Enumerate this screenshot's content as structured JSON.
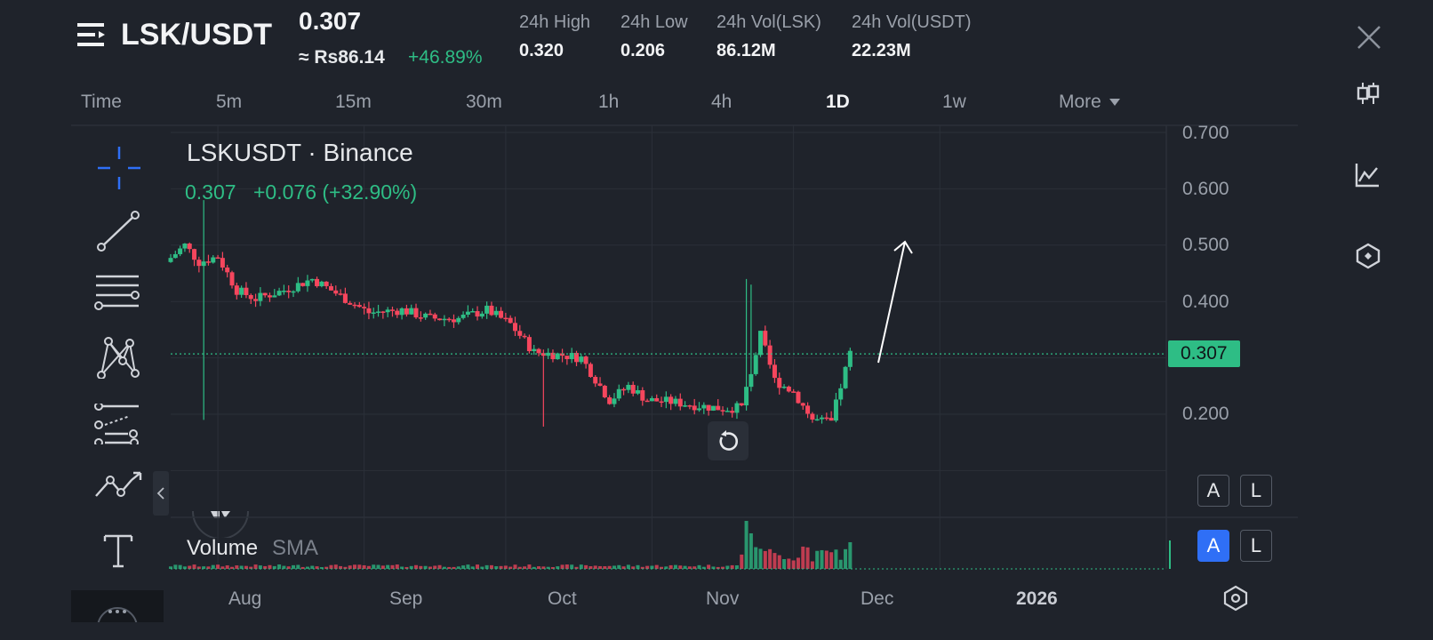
{
  "header": {
    "pair": "LSK/USDT",
    "last_price": "0.307",
    "approx_local": "≈ Rs86.14",
    "change_pct": "+46.89%",
    "stats": [
      {
        "label": "24h High",
        "value": "0.320"
      },
      {
        "label": "24h Low",
        "value": "0.206"
      },
      {
        "label": "24h Vol(LSK)",
        "value": "86.12M"
      },
      {
        "label": "24h Vol(USDT)",
        "value": "22.23M"
      }
    ]
  },
  "timeframes": {
    "time_label": "Time",
    "items": [
      "5m",
      "15m",
      "30m",
      "1h",
      "4h",
      "1D",
      "1w"
    ],
    "active": "1D",
    "more_label": "More"
  },
  "legend": {
    "symbol": "LSKUSDT · Binance",
    "price": "0.307",
    "change": "+0.076 (+32.90%)"
  },
  "volume_legend": {
    "label": "Volume",
    "indicator": "SMA"
  },
  "price_tag": "0.307",
  "scale_buttons": {
    "auto": "A",
    "log": "L"
  },
  "colors": {
    "background": "#1f232b",
    "up": "#2ebd85",
    "down": "#f6465d",
    "active_button": "#2f6ff6"
  },
  "icons": {
    "left_toolbar": [
      "crosshair-icon",
      "trend-line-icon",
      "horizontal-lines-icon",
      "pattern-icon",
      "fib-settings-icon",
      "polyline-icon",
      "text-icon",
      "more-icon"
    ],
    "right_toolbar": [
      "close-icon",
      "candles-icon",
      "indicator-chart-icon",
      "hexagon-settings-icon"
    ]
  },
  "chart_data": {
    "type": "candlestick",
    "y_ticks": [
      "0.700",
      "0.600",
      "0.500",
      "0.400",
      "0.200"
    ],
    "ylim": [
      0.1,
      0.7
    ],
    "x_ticks": [
      "Aug",
      "Sep",
      "Oct",
      "Nov",
      "Dec",
      "2026"
    ],
    "last_price": 0.307,
    "x_range": [
      "2025-07-22",
      "2026-02-18"
    ],
    "series": [
      {
        "date": "2025-07-22",
        "close": 0.47
      },
      {
        "date": "2025-07-26",
        "close": 0.5
      },
      {
        "date": "2025-07-29",
        "close": 0.47
      },
      {
        "date": "2025-08-02",
        "close": 0.48
      },
      {
        "date": "2025-08-06",
        "close": 0.42
      },
      {
        "date": "2025-08-10",
        "close": 0.405
      },
      {
        "date": "2025-08-16",
        "close": 0.42
      },
      {
        "date": "2025-08-22",
        "close": 0.44
      },
      {
        "date": "2025-08-28",
        "close": 0.41
      },
      {
        "date": "2025-09-03",
        "close": 0.38
      },
      {
        "date": "2025-09-10",
        "close": 0.385
      },
      {
        "date": "2025-09-16",
        "close": 0.37
      },
      {
        "date": "2025-09-22",
        "close": 0.37
      },
      {
        "date": "2025-09-28",
        "close": 0.385
      },
      {
        "date": "2025-10-03",
        "close": 0.36
      },
      {
        "date": "2025-10-08",
        "close": 0.31
      },
      {
        "date": "2025-10-14",
        "close": 0.305
      },
      {
        "date": "2025-10-18",
        "close": 0.3
      },
      {
        "date": "2025-10-24",
        "close": 0.225
      },
      {
        "date": "2025-10-28",
        "close": 0.25
      },
      {
        "date": "2025-11-01",
        "close": 0.225
      },
      {
        "date": "2025-11-06",
        "close": 0.222
      },
      {
        "date": "2025-11-12",
        "close": 0.215
      },
      {
        "date": "2025-11-17",
        "close": 0.21
      },
      {
        "date": "2025-11-21",
        "close": 0.212
      },
      {
        "date": "2025-11-25",
        "close": 0.34
      },
      {
        "date": "2025-11-28",
        "close": 0.26
      },
      {
        "date": "2025-12-02",
        "close": 0.24
      },
      {
        "date": "2025-12-06",
        "close": 0.19
      },
      {
        "date": "2025-12-10",
        "close": 0.185
      },
      {
        "date": "2025-12-12",
        "close": 0.25
      },
      {
        "date": "2025-12-14",
        "close": 0.307
      }
    ]
  }
}
